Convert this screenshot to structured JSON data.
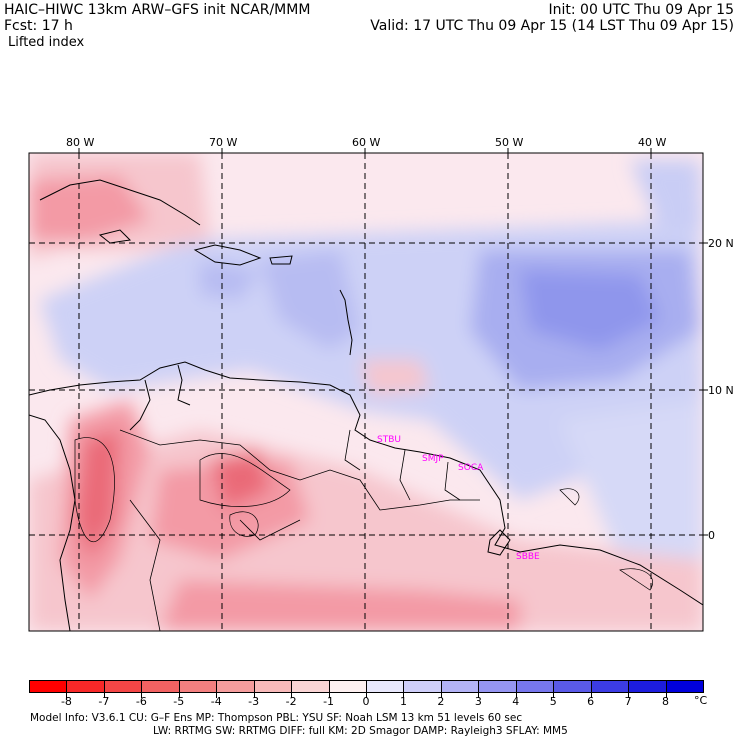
{
  "header": {
    "model_line": "HAIC–HIWC 13km ARW–GFS init    NCAR/MMM",
    "init_line": "Init: 00 UTC Thu 09 Apr 15",
    "fcst_line": "Fcst:    17 h",
    "valid_line": "Valid: 17 UTC Thu 09 Apr 15 (14 LST Thu 09 Apr 15)",
    "field_line": "Lifted index"
  },
  "map": {
    "lon_labels": [
      "80 W",
      "70 W",
      "60 W",
      "50 W",
      "40 W"
    ],
    "lat_labels": [
      "20 N",
      "10 N",
      "0"
    ],
    "station_labels": [
      "STBU",
      "SMJP",
      "SOCA",
      "SBBE"
    ],
    "field_colors": {
      "neutral": "#fbe8ee",
      "stable_light": "#cdd1f6",
      "stable_mid": "#a8aef0",
      "stable_strong": "#7c84ea",
      "unstable_light": "#f6c6cd",
      "unstable_mid": "#f39aa5",
      "unstable_strong": "#ea6a78"
    }
  },
  "colorbar": {
    "labels": [
      "-8",
      "-7",
      "-6",
      "-5",
      "-4",
      "-3",
      "-2",
      "-1",
      "0",
      "1",
      "2",
      "3",
      "4",
      "5",
      "6",
      "7",
      "8"
    ],
    "unit": "°C",
    "colors": [
      "#ff0000",
      "#f82828",
      "#f44646",
      "#f26262",
      "#f37f7f",
      "#f59d9d",
      "#f8baba",
      "#fad5d5",
      "#fdf0f0",
      "#e8e8fc",
      "#cfcffa",
      "#b3b3f6",
      "#9595f1",
      "#7777ed",
      "#5a5ae8",
      "#3c3ce4",
      "#1d1dde",
      "#0000dd"
    ]
  },
  "footer": {
    "line1": "Model Info: V3.6.1     CU: G–F Ens MP: Thompson     PBL: YSU       SF: Noah LSM     13 km    51 levels    60 sec",
    "line2": "LW: RRTMG    SW: RRTMG   DIFF: full    KM: 2D Smagor DAMP: Rayleigh3  SFLAY: MM5"
  }
}
